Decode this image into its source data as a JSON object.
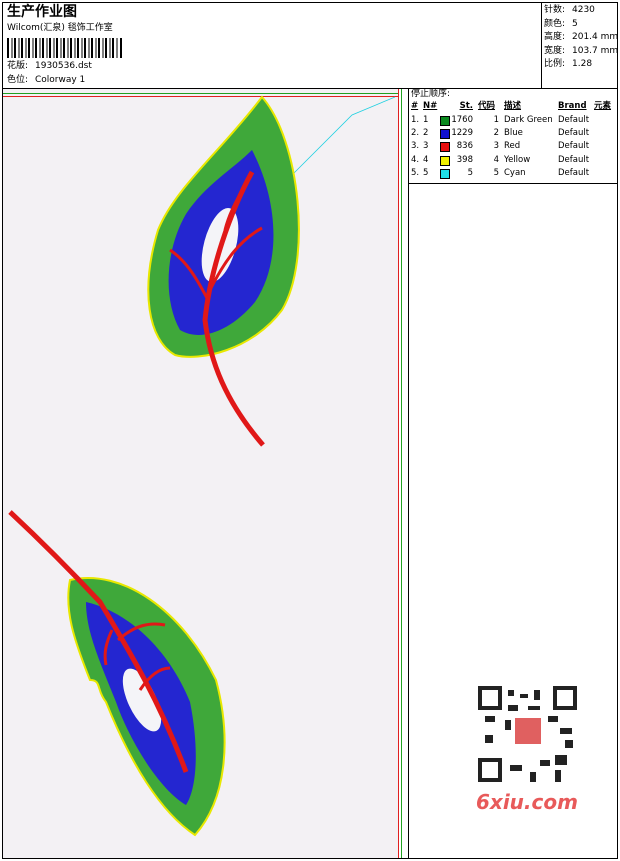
{
  "header": {
    "title": "生产作业图",
    "studio": "Wilcom(汇泉) 毯饰工作室",
    "design_label": "花版:",
    "design_file": "1930536.dst",
    "colorway_label": "色位:",
    "colorway": "Colorway 1"
  },
  "info": [
    {
      "label": "针数:",
      "value": "4230"
    },
    {
      "label": "颜色:",
      "value": "5"
    },
    {
      "label": "高度:",
      "value": "201.4 mm"
    },
    {
      "label": "宽度:",
      "value": "103.7 mm"
    },
    {
      "label": "比例:",
      "value": "1.28"
    }
  ],
  "stop_sequence": {
    "title": "停止顺序:",
    "columns": [
      "#",
      "N#",
      "St.",
      "代码",
      "描述",
      "Brand",
      "元素"
    ],
    "rows": [
      {
        "stop": "1.",
        "needle": "1",
        "color": "#0a8a1e",
        "stitches": "1760",
        "code": "1",
        "description": "Dark Green",
        "brand": "Default"
      },
      {
        "stop": "2.",
        "needle": "2",
        "color": "#1010d0",
        "stitches": "1229",
        "code": "2",
        "description": "Blue",
        "brand": "Default"
      },
      {
        "stop": "3.",
        "needle": "3",
        "color": "#e81010",
        "stitches": "836",
        "code": "3",
        "description": "Red",
        "brand": "Default"
      },
      {
        "stop": "4.",
        "needle": "4",
        "color": "#f0f000",
        "stitches": "398",
        "code": "4",
        "description": "Yellow",
        "brand": "Default"
      },
      {
        "stop": "5.",
        "needle": "5",
        "color": "#20e0e8",
        "stitches": "5",
        "code": "5",
        "description": "Cyan",
        "brand": "Default"
      }
    ]
  },
  "watermark": "6xiu.com"
}
